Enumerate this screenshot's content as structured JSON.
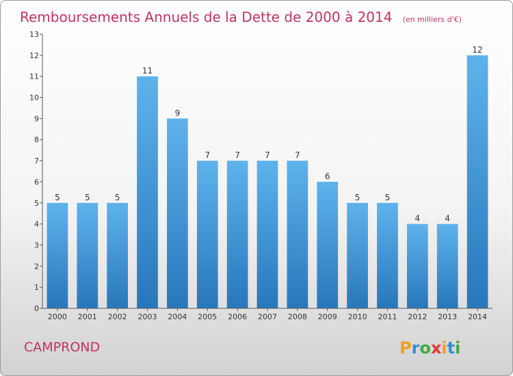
{
  "chart_data": {
    "type": "bar",
    "title": "Remboursements Annuels de la Dette de 2000 à 2014",
    "subtitle": "(en milliers d'€)",
    "categories": [
      "2000",
      "2001",
      "2002",
      "2003",
      "2004",
      "2005",
      "2006",
      "2007",
      "2008",
      "2009",
      "2010",
      "2011",
      "2012",
      "2013",
      "2014"
    ],
    "values": [
      5,
      5,
      5,
      11,
      9,
      7,
      7,
      7,
      7,
      6,
      5,
      5,
      4,
      4,
      12
    ],
    "ylim": [
      0,
      13
    ],
    "yticks": [
      "0",
      "1",
      "2",
      "3",
      "4",
      "5",
      "6",
      "7",
      "8",
      "9",
      "10",
      "11",
      "12",
      "13"
    ],
    "grid": false,
    "bar_color": "#3d8fd6"
  },
  "footer": {
    "commune": "CAMPROND",
    "logo_letters": [
      "P",
      "r",
      "o",
      "x",
      "i",
      "t",
      "i"
    ],
    "logo_colors": [
      "#f0a020",
      "#2e8fd8",
      "#3dac3d",
      "#e03a3a",
      "#f0a020",
      "#2e8fd8",
      "#3dac3d"
    ]
  }
}
